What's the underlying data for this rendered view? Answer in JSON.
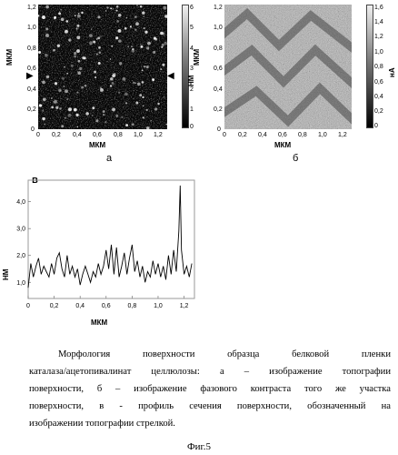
{
  "panels": {
    "a": {
      "label": "а",
      "x_ticks": [
        "0",
        "0,2",
        "0,4",
        "0,6",
        "0,8",
        "1,0",
        "1,2"
      ],
      "y_ticks": [
        "1,2",
        "1,0",
        "0,8",
        "0,6",
        "0,4",
        "0,2",
        "0"
      ],
      "xlabel": "МКМ",
      "ylabel": "МКМ",
      "colorbar_ticks": [
        "6",
        "5",
        "4",
        "3",
        "2",
        "1",
        "0"
      ],
      "colorbar_unit": "НМ",
      "marker_left": "▶",
      "marker_right": "◀"
    },
    "b": {
      "label": "б",
      "x_ticks": [
        "0",
        "0,2",
        "0,4",
        "0,6",
        "0,8",
        "1,0",
        "1,2"
      ],
      "y_ticks": [
        "1,2",
        "1,0",
        "0,8",
        "0,6",
        "0,4",
        "0,2",
        "0"
      ],
      "xlabel": "МКМ",
      "ylabel": "МКМ",
      "colorbar_ticks": [
        "1,6",
        "1,4",
        "1,2",
        "1,0",
        "0,8",
        "0,6",
        "0,4",
        "0,2",
        "0"
      ],
      "colorbar_unit": "нА"
    },
    "c": {
      "label": "в"
    }
  },
  "chart_data": {
    "type": "line",
    "title": "",
    "xlabel": "МКМ",
    "ylabel": "НМ",
    "x_ticks": [
      "0",
      "0,2",
      "0,4",
      "0,6",
      "0,8",
      "1,0",
      "1,2"
    ],
    "y_ticks": [
      "4,0",
      "3,0",
      "2,0",
      "1,0"
    ],
    "xlim": [
      0,
      1.28
    ],
    "ylim": [
      0.4,
      4.8
    ],
    "grid": false,
    "series": [
      {
        "x": [
          0.0,
          0.02,
          0.04,
          0.06,
          0.08,
          0.1,
          0.12,
          0.14,
          0.16,
          0.18,
          0.2,
          0.22,
          0.24,
          0.26,
          0.28,
          0.3,
          0.32,
          0.34,
          0.36,
          0.38,
          0.4,
          0.42,
          0.44,
          0.46,
          0.48,
          0.5,
          0.52,
          0.54,
          0.56,
          0.58,
          0.6,
          0.62,
          0.64,
          0.66,
          0.68,
          0.7,
          0.72,
          0.74,
          0.76,
          0.78,
          0.8,
          0.82,
          0.84,
          0.86,
          0.88,
          0.9,
          0.92,
          0.94,
          0.96,
          0.98,
          1.0,
          1.02,
          1.04,
          1.06,
          1.08,
          1.1,
          1.12,
          1.14,
          1.16,
          1.17,
          1.18,
          1.2,
          1.22,
          1.24,
          1.26
        ],
        "y": [
          0.8,
          1.7,
          1.2,
          1.6,
          1.9,
          1.3,
          1.6,
          1.4,
          1.2,
          1.7,
          1.3,
          1.9,
          2.1,
          1.5,
          1.2,
          2.0,
          1.3,
          1.6,
          1.2,
          1.5,
          0.9,
          1.3,
          1.6,
          1.3,
          1.0,
          1.4,
          1.2,
          1.7,
          1.3,
          1.6,
          2.2,
          1.5,
          2.4,
          1.3,
          2.3,
          1.2,
          1.6,
          2.1,
          1.3,
          1.9,
          2.4,
          1.4,
          1.8,
          1.2,
          1.6,
          1.0,
          1.4,
          1.2,
          1.8,
          1.3,
          1.7,
          1.2,
          1.6,
          1.1,
          2.0,
          1.3,
          2.2,
          1.4,
          2.9,
          4.6,
          2.2,
          1.3,
          1.6,
          1.2,
          1.7
        ]
      }
    ]
  },
  "caption": {
    "lines": [
      "Морфология   поверхности   образца   белковой   пленки",
      "каталаза/ацетопивалинат целлюлозы: а – изображение топографии",
      "поверхности, б – изображение фазового контраста того же участка",
      "поверхности, в - профиль сечения поверхности, обозначенный на",
      "изображении топографии стрелкой."
    ]
  },
  "figure_label": "Фиг.5"
}
